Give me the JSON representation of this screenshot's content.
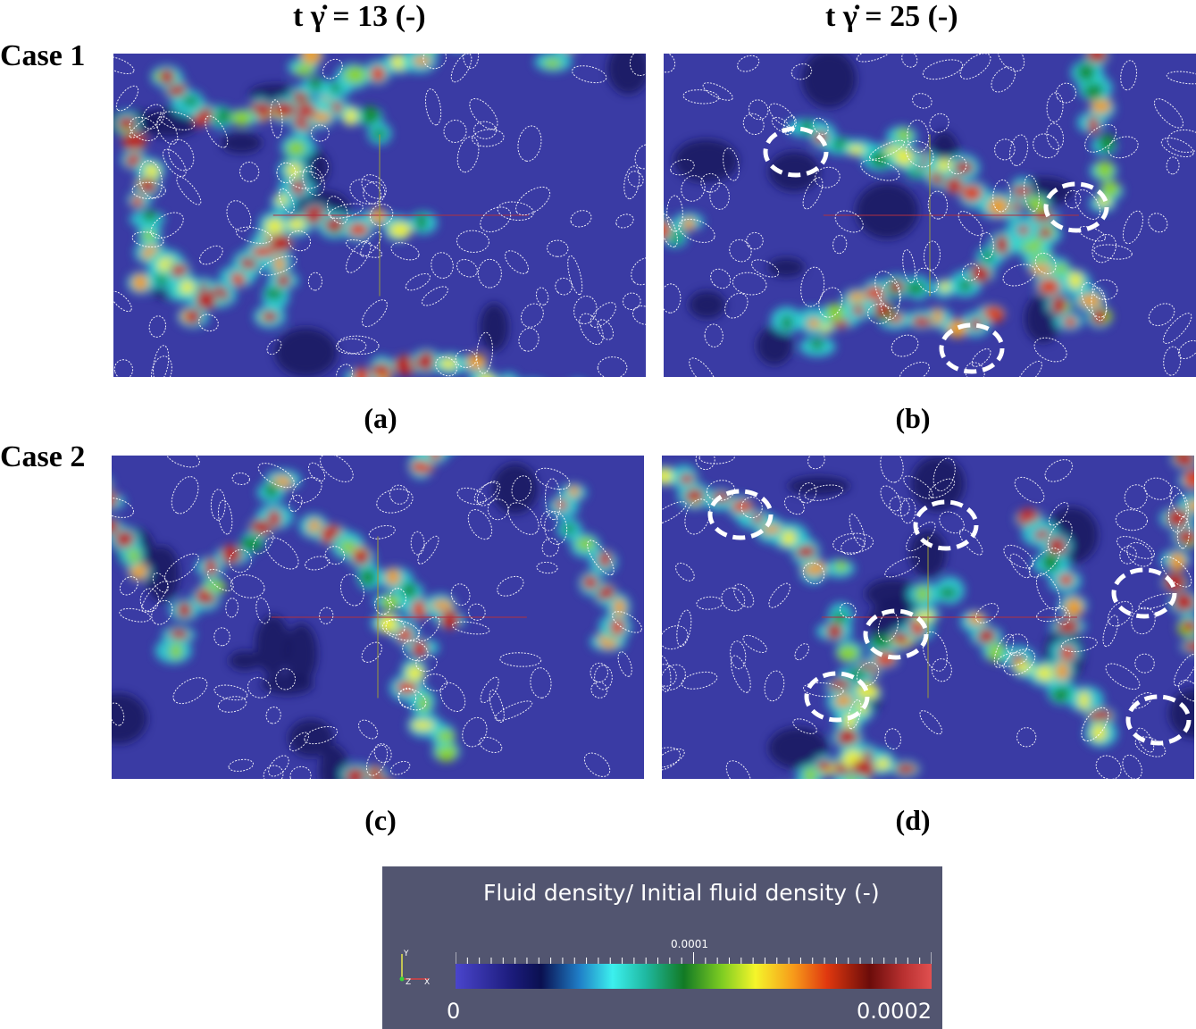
{
  "headers": {
    "left": "t  γ̇  = 13 (-)",
    "right": "t  γ̇  = 25 (-)"
  },
  "rows": {
    "case1": "Case 1",
    "case2": "Case 2"
  },
  "captions": {
    "a": "(a)",
    "b": "(b)",
    "c": "(c)",
    "d": "(d)"
  },
  "colorbar": {
    "title": "Fluid density/ Initial fluid density (-)",
    "min_label": "0",
    "mid_label": "0.0001",
    "max_label": "0.0002",
    "axis_y": "Y",
    "axis_z": "Z",
    "axis_x": "X"
  },
  "colors": {
    "background_fluid": "#3a3ba4",
    "low": "#1b1b7a",
    "cyan": "#3cf0ee",
    "green": "#127a24",
    "yellow": "#f5f52a",
    "red": "#c8282a",
    "dark_red": "#6b0c0a",
    "highlight_circle": "#ffffff"
  }
}
